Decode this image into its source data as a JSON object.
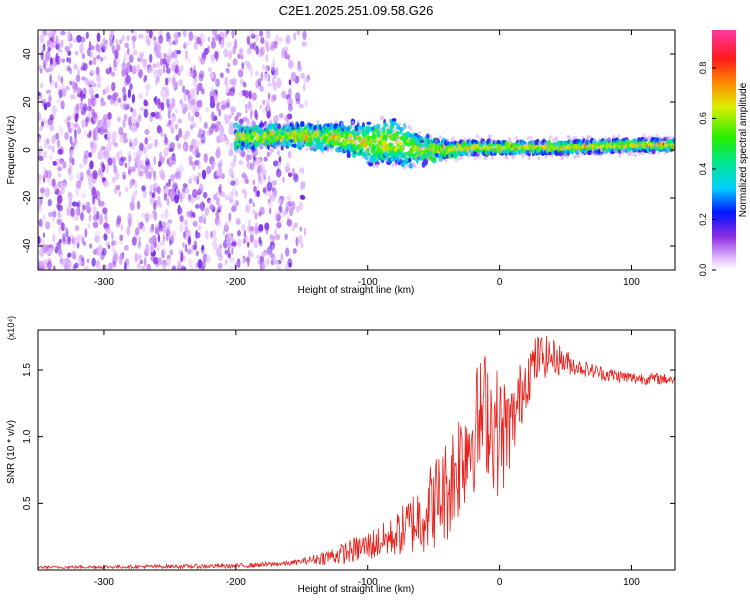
{
  "title": "C2E1.2025.251.09.58.G26",
  "chart_data": [
    {
      "type": "heatmap",
      "xlabel": "Height of straight line (km)",
      "ylabel": "Frequency (Hz)",
      "xlim": [
        -350,
        133
      ],
      "ylim": [
        -50,
        50
      ],
      "xticks": [
        -300,
        -200,
        -100,
        0,
        100
      ],
      "yticks": [
        -40,
        -20,
        0,
        20,
        40
      ],
      "colorbar": {
        "label": "Normalized spectral amplitude",
        "range": [
          0,
          0.95
        ],
        "ticks": [
          0.0,
          0.2,
          0.4,
          0.6,
          0.8
        ]
      },
      "features": {
        "noise_region_x": [
          -350,
          -145
        ],
        "signal_band": {
          "x": [
            -200,
            133
          ],
          "center_hz": [
            [
              -200,
              5
            ],
            [
              -150,
              6
            ],
            [
              -120,
              5
            ],
            [
              -100,
              3
            ],
            [
              -80,
              3
            ],
            [
              -60,
              0
            ],
            [
              -40,
              0
            ],
            [
              -20,
              1
            ],
            [
              0,
              1
            ],
            [
              50,
              1
            ],
            [
              100,
              2
            ],
            [
              133,
              2
            ]
          ],
          "halfwidth_hz": [
            [
              -200,
              4
            ],
            [
              -150,
              4
            ],
            [
              -120,
              5
            ],
            [
              -100,
              8
            ],
            [
              -80,
              9
            ],
            [
              -60,
              5
            ],
            [
              -40,
              3
            ],
            [
              0,
              2.5
            ],
            [
              133,
              2.5
            ]
          ]
        }
      }
    },
    {
      "type": "line",
      "xlabel": "Height of straight line (km)",
      "ylabel": "SNR (10 * v/v)",
      "scale_note": "(x10⁴)",
      "xlim": [
        -350,
        133
      ],
      "ylim": [
        0,
        1.8
      ],
      "xticks": [
        -300,
        -200,
        -100,
        0,
        100
      ],
      "yticks": [
        0.5,
        1.0,
        1.5
      ],
      "ytick_labels": [
        "0.5",
        "1.0",
        "1.5"
      ],
      "color": "#e8211c",
      "envelope": [
        [
          -350,
          0.02
        ],
        [
          -200,
          0.03
        ],
        [
          -160,
          0.05
        ],
        [
          -140,
          0.08
        ],
        [
          -120,
          0.12
        ],
        [
          -100,
          0.18
        ],
        [
          -80,
          0.25
        ],
        [
          -60,
          0.4
        ],
        [
          -40,
          0.6
        ],
        [
          -25,
          0.95
        ],
        [
          -10,
          1.2
        ],
        [
          0,
          1.0
        ],
        [
          10,
          1.1
        ],
        [
          20,
          1.45
        ],
        [
          30,
          1.6
        ],
        [
          40,
          1.6
        ],
        [
          60,
          1.52
        ],
        [
          80,
          1.47
        ],
        [
          100,
          1.44
        ],
        [
          133,
          1.43
        ]
      ],
      "noise_amplitude": [
        [
          -350,
          0.01
        ],
        [
          -150,
          0.02
        ],
        [
          -120,
          0.08
        ],
        [
          -80,
          0.15
        ],
        [
          -50,
          0.35
        ],
        [
          -30,
          0.45
        ],
        [
          0,
          0.5
        ],
        [
          10,
          0.3
        ],
        [
          30,
          0.18
        ],
        [
          60,
          0.06
        ],
        [
          133,
          0.04
        ]
      ]
    }
  ]
}
